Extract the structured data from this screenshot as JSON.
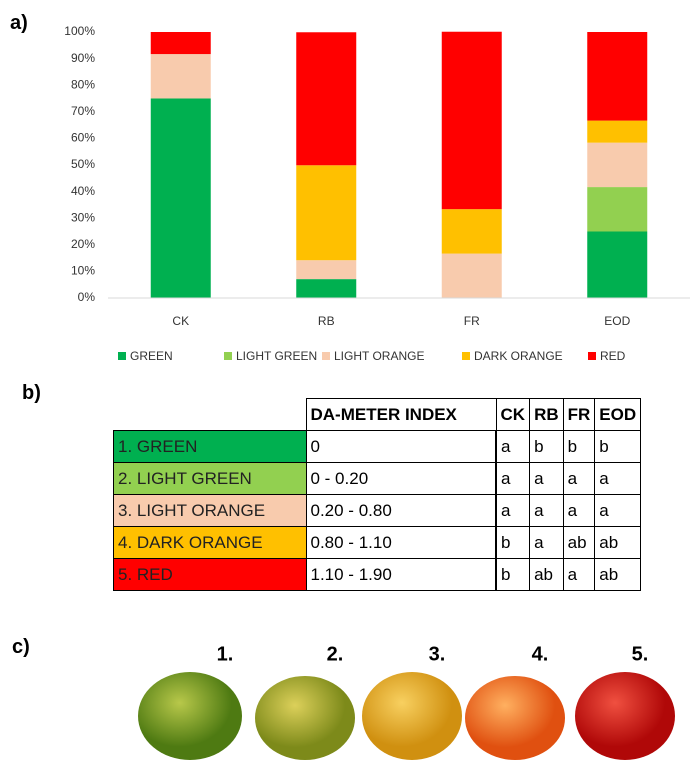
{
  "panel_labels": [
    "a)",
    "b)",
    "c)"
  ],
  "chart_data": {
    "type": "stacked_bar",
    "categories": [
      "CK",
      "RB",
      "FR",
      "EOD"
    ],
    "series": [
      {
        "name": "GREEN",
        "color": "#00b050",
        "values": [
          75,
          7.1,
          0,
          25
        ]
      },
      {
        "name": "LIGHT GREEN",
        "color": "#92d050",
        "values": [
          0,
          0,
          0,
          16.7
        ]
      },
      {
        "name": "LIGHT ORANGE",
        "color": "#f8cbad",
        "values": [
          16.7,
          7.1,
          16.7,
          16.7
        ]
      },
      {
        "name": "DARK ORANGE",
        "color": "#ffc000",
        "values": [
          0,
          35.7,
          16.7,
          8.3
        ]
      },
      {
        "name": "RED",
        "color": "#ff0000",
        "values": [
          8.3,
          50,
          66.7,
          33.3
        ]
      }
    ],
    "ylim": [
      0,
      100
    ],
    "yticks": [
      {
        "value": 0,
        "label": "0%"
      },
      {
        "value": 10,
        "label": "10%"
      },
      {
        "value": 20,
        "label": "20%"
      },
      {
        "value": 30,
        "label": "30%"
      },
      {
        "value": 40,
        "label": "40%"
      },
      {
        "value": 50,
        "label": "50%"
      },
      {
        "value": 60,
        "label": "60%"
      },
      {
        "value": 70,
        "label": "70%"
      },
      {
        "value": 80,
        "label": "80%"
      },
      {
        "value": 90,
        "label": "90%"
      },
      {
        "value": 100,
        "label": "100%"
      }
    ],
    "grid": false,
    "legend": "bottom"
  },
  "table": {
    "header": [
      "DA-METER INDEX",
      "CK",
      "RB",
      "FR",
      "EOD"
    ],
    "rows": [
      [
        "1. GREEN",
        "0",
        "a",
        "b",
        "b",
        "b"
      ],
      [
        "2. LIGHT GREEN",
        "0 - 0.20",
        "a",
        "a",
        "a",
        "a"
      ],
      [
        "3. LIGHT ORANGE",
        "0.20 - 0.80",
        "a",
        "a",
        "a",
        "a"
      ],
      [
        "4. DARK ORANGE",
        "0.80 - 1.10",
        "b",
        "a",
        "ab",
        "ab"
      ],
      [
        "5. RED",
        "1.10 - 1.90",
        "b",
        "ab",
        "a",
        "ab"
      ]
    ],
    "row_colors": [
      "#00b050",
      "#92d050",
      "#f8cbad",
      "#ffc000",
      "#ff0000"
    ]
  },
  "photos": {
    "labels": [
      "1.",
      "2.",
      "3.",
      "4.",
      "5."
    ]
  }
}
